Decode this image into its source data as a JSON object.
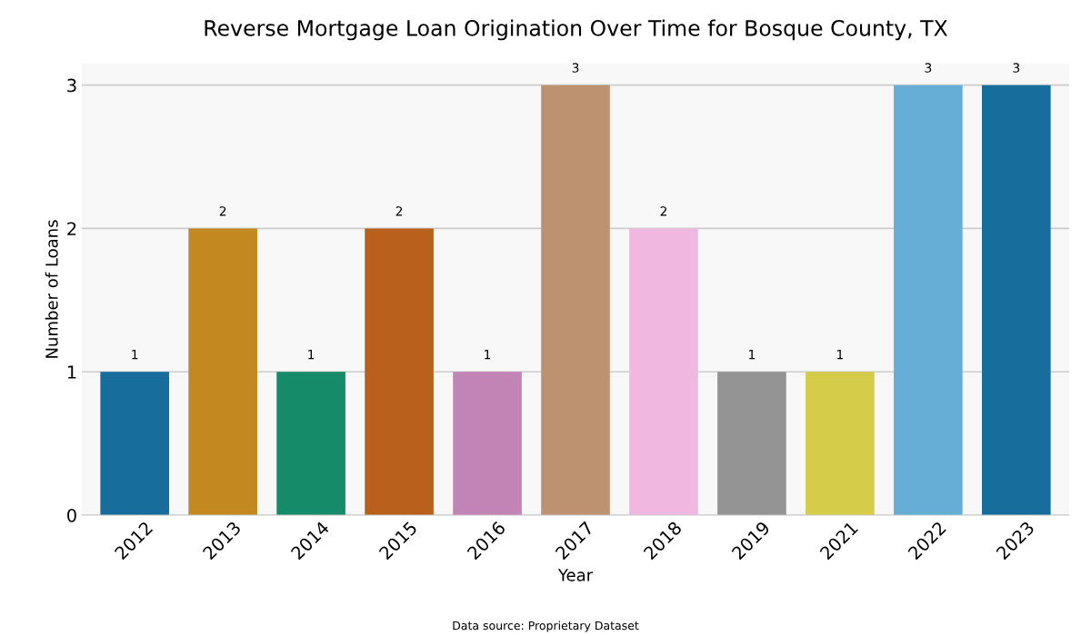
{
  "chart_data": {
    "type": "bar",
    "title": "Reverse Mortgage Loan Origination Over Time for Bosque County, TX",
    "xlabel": "Year",
    "ylabel": "Number of Loans",
    "categories": [
      "2012",
      "2013",
      "2014",
      "2015",
      "2016",
      "2017",
      "2018",
      "2019",
      "2021",
      "2022",
      "2023"
    ],
    "values": [
      1,
      2,
      1,
      2,
      1,
      3,
      2,
      1,
      1,
      3,
      3
    ],
    "colors": [
      "#176d9c",
      "#c38820",
      "#158b6a",
      "#b8601c",
      "#c283b5",
      "#bc9270",
      "#f0b8e0",
      "#949494",
      "#d5cc4a",
      "#67aed6",
      "#176d9c"
    ],
    "ylim": [
      0,
      3.15
    ],
    "yticks": [
      0,
      1,
      2,
      3
    ],
    "grid": "y",
    "data_labels": true,
    "legend": false,
    "annotations": [
      "Data source: Proprietary Dataset"
    ]
  }
}
